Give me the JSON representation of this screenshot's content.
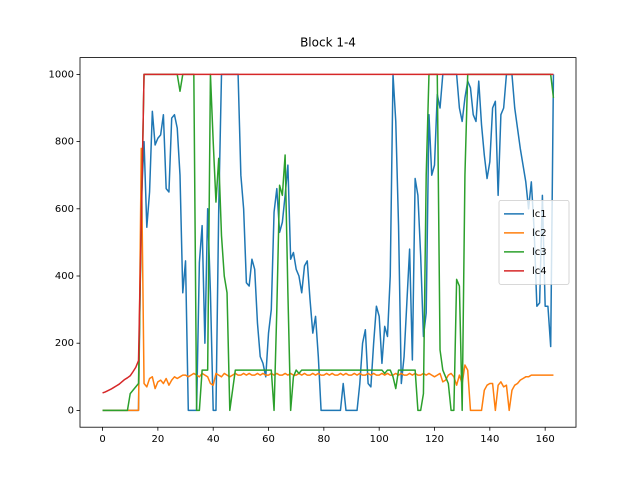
{
  "chart_data": {
    "type": "line",
    "title": "Block 1-4",
    "x": [
      0,
      1,
      2,
      3,
      4,
      5,
      6,
      7,
      8,
      9,
      10,
      11,
      12,
      13,
      14,
      15,
      16,
      17,
      18,
      19,
      20,
      21,
      22,
      23,
      24,
      25,
      26,
      27,
      28,
      29,
      30,
      31,
      32,
      33,
      34,
      35,
      36,
      37,
      38,
      39,
      40,
      41,
      42,
      43,
      44,
      45,
      46,
      47,
      48,
      49,
      50,
      51,
      52,
      53,
      54,
      55,
      56,
      57,
      58,
      59,
      60,
      61,
      62,
      63,
      64,
      65,
      66,
      67,
      68,
      69,
      70,
      71,
      72,
      73,
      74,
      75,
      76,
      77,
      78,
      79,
      80,
      81,
      82,
      83,
      84,
      85,
      86,
      87,
      88,
      89,
      90,
      91,
      92,
      93,
      94,
      95,
      96,
      97,
      98,
      99,
      100,
      101,
      102,
      103,
      104,
      105,
      106,
      107,
      108,
      109,
      110,
      111,
      112,
      113,
      114,
      115,
      116,
      117,
      118,
      119,
      120,
      121,
      122,
      123,
      124,
      125,
      126,
      127,
      128,
      129,
      130,
      131,
      132,
      133,
      134,
      135,
      136,
      137,
      138,
      139,
      140,
      141,
      142,
      143,
      144,
      145,
      146,
      147,
      148,
      149,
      150,
      151,
      152,
      153,
      154,
      155,
      156,
      157,
      158,
      159,
      160,
      161,
      162,
      163
    ],
    "series": [
      {
        "name": "lc1",
        "color": "#1f77b4",
        "values": [
          0,
          0,
          0,
          0,
          0,
          0,
          0,
          0,
          0,
          0,
          0,
          0,
          0,
          0,
          620,
          800,
          545,
          650,
          890,
          790,
          810,
          820,
          880,
          660,
          650,
          870,
          880,
          840,
          700,
          350,
          445,
          0,
          0,
          0,
          0,
          440,
          550,
          200,
          600,
          350,
          0,
          0,
          600,
          1000,
          1000,
          1000,
          1000,
          1000,
          1000,
          1000,
          700,
          600,
          380,
          370,
          450,
          420,
          260,
          160,
          140,
          100,
          230,
          300,
          590,
          660,
          530,
          560,
          640,
          730,
          450,
          470,
          420,
          400,
          350,
          430,
          445,
          330,
          230,
          280,
          160,
          0,
          0,
          0,
          0,
          0,
          0,
          0,
          0,
          80,
          0,
          0,
          0,
          0,
          0,
          80,
          200,
          240,
          80,
          70,
          200,
          310,
          280,
          140,
          250,
          220,
          400,
          1000,
          860,
          550,
          80,
          160,
          320,
          480,
          150,
          690,
          640,
          460,
          220,
          290,
          880,
          700,
          730,
          940,
          900,
          1000,
          1000,
          1000,
          1000,
          1000,
          1000,
          900,
          860,
          930,
          980,
          960,
          880,
          860,
          980,
          850,
          760,
          690,
          740,
          900,
          920,
          640,
          880,
          900,
          1000,
          1000,
          1000,
          900,
          840,
          780,
          730,
          680,
          600,
          680,
          540,
          310,
          320,
          640,
          310,
          310,
          190,
          1000
        ]
      },
      {
        "name": "lc2",
        "color": "#ff7f0e",
        "values": [
          0,
          0,
          0,
          0,
          0,
          0,
          0,
          0,
          0,
          0,
          0,
          0,
          0,
          0,
          780,
          80,
          70,
          95,
          100,
          65,
          85,
          90,
          80,
          95,
          75,
          90,
          100,
          95,
          100,
          105,
          105,
          100,
          105,
          110,
          105,
          100,
          110,
          105,
          100,
          80,
          75,
          110,
          105,
          100,
          110,
          105,
          100,
          105,
          110,
          105,
          105,
          110,
          105,
          110,
          105,
          105,
          110,
          105,
          110,
          105,
          105,
          110,
          105,
          110,
          105,
          105,
          110,
          105,
          110,
          105,
          105,
          110,
          105,
          110,
          105,
          105,
          110,
          105,
          110,
          105,
          105,
          110,
          105,
          110,
          105,
          105,
          110,
          105,
          110,
          105,
          105,
          110,
          105,
          110,
          105,
          105,
          110,
          105,
          110,
          105,
          105,
          110,
          105,
          110,
          105,
          105,
          110,
          105,
          110,
          105,
          105,
          110,
          105,
          110,
          105,
          105,
          110,
          105,
          110,
          105,
          100,
          105,
          110,
          85,
          90,
          105,
          110,
          100,
          75,
          105,
          80,
          135,
          120,
          0,
          0,
          0,
          0,
          0,
          60,
          75,
          80,
          80,
          0,
          75,
          85,
          70,
          75,
          0,
          60,
          75,
          80,
          90,
          95,
          100,
          100,
          105,
          105,
          105,
          105,
          105,
          105,
          105,
          105,
          105
        ]
      },
      {
        "name": "lc3",
        "color": "#2ca02c",
        "values": [
          0,
          0,
          0,
          0,
          0,
          0,
          0,
          0,
          0,
          0,
          50,
          60,
          70,
          80,
          550,
          1000,
          1000,
          1000,
          1000,
          1000,
          1000,
          1000,
          1000,
          1000,
          1000,
          1000,
          1000,
          1000,
          950,
          1000,
          1000,
          1000,
          1000,
          1000,
          0,
          0,
          120,
          120,
          120,
          1000,
          800,
          620,
          750,
          520,
          400,
          350,
          0,
          60,
          120,
          120,
          120,
          120,
          120,
          120,
          120,
          120,
          120,
          120,
          120,
          120,
          120,
          120,
          0,
          300,
          670,
          640,
          760,
          350,
          0,
          100,
          120,
          110,
          120,
          120,
          120,
          120,
          120,
          120,
          120,
          120,
          120,
          120,
          120,
          120,
          120,
          120,
          120,
          120,
          120,
          120,
          120,
          120,
          120,
          120,
          120,
          120,
          120,
          120,
          120,
          120,
          120,
          120,
          110,
          120,
          120,
          100,
          65,
          120,
          120,
          120,
          120,
          120,
          120,
          120,
          0,
          0,
          50,
          700,
          1000,
          1000,
          1000,
          1000,
          180,
          120,
          100,
          80,
          0,
          0,
          390,
          370,
          0,
          700,
          1000,
          1000,
          1000,
          1000,
          1000,
          1000,
          1000,
          1000,
          1000,
          1000,
          1000,
          1000,
          1000,
          1000,
          1000,
          1000,
          1000,
          1000,
          1000,
          1000,
          1000,
          1000,
          1000,
          1000,
          1000,
          1000,
          1000,
          1000,
          1000,
          1000,
          1000,
          930
        ]
      },
      {
        "name": "lc4",
        "color": "#d62728",
        "values": [
          52,
          55,
          59,
          63,
          68,
          73,
          78,
          85,
          92,
          97,
          103,
          115,
          128,
          148,
          560,
          1000,
          1000,
          1000,
          1000,
          1000,
          1000,
          1000,
          1000,
          1000,
          1000,
          1000,
          1000,
          1000,
          1000,
          1000,
          1000,
          1000,
          1000,
          1000,
          1000,
          1000,
          1000,
          1000,
          1000,
          1000,
          1000,
          1000,
          1000,
          1000,
          1000,
          1000,
          1000,
          1000,
          1000,
          1000,
          1000,
          1000,
          1000,
          1000,
          1000,
          1000,
          1000,
          1000,
          1000,
          1000,
          1000,
          1000,
          1000,
          1000,
          1000,
          1000,
          1000,
          1000,
          1000,
          1000,
          1000,
          1000,
          1000,
          1000,
          1000,
          1000,
          1000,
          1000,
          1000,
          1000,
          1000,
          1000,
          1000,
          1000,
          1000,
          1000,
          1000,
          1000,
          1000,
          1000,
          1000,
          1000,
          1000,
          1000,
          1000,
          1000,
          1000,
          1000,
          1000,
          1000,
          1000,
          1000,
          1000,
          1000,
          1000,
          1000,
          1000,
          1000,
          1000,
          1000,
          1000,
          1000,
          1000,
          1000,
          1000,
          1000,
          1000,
          1000,
          1000,
          1000,
          1000,
          1000,
          1000,
          1000,
          1000,
          1000,
          1000,
          1000,
          1000,
          1000,
          1000,
          1000,
          1000,
          1000,
          1000,
          1000,
          1000,
          1000,
          1000,
          1000,
          1000,
          1000,
          1000,
          1000,
          1000,
          1000,
          1000,
          1000,
          1000,
          1000,
          1000,
          1000,
          1000,
          1000,
          1000,
          1000,
          1000,
          1000,
          1000,
          1000,
          1000,
          1000,
          1000,
          1000
        ]
      }
    ],
    "xlim": [
      -8.15,
      171.15
    ],
    "ylim": [
      -50,
      1050
    ],
    "xticks": [
      0,
      20,
      40,
      60,
      80,
      100,
      120,
      140,
      160
    ],
    "yticks": [
      0,
      200,
      400,
      600,
      800,
      1000
    ],
    "legend": "center right"
  }
}
